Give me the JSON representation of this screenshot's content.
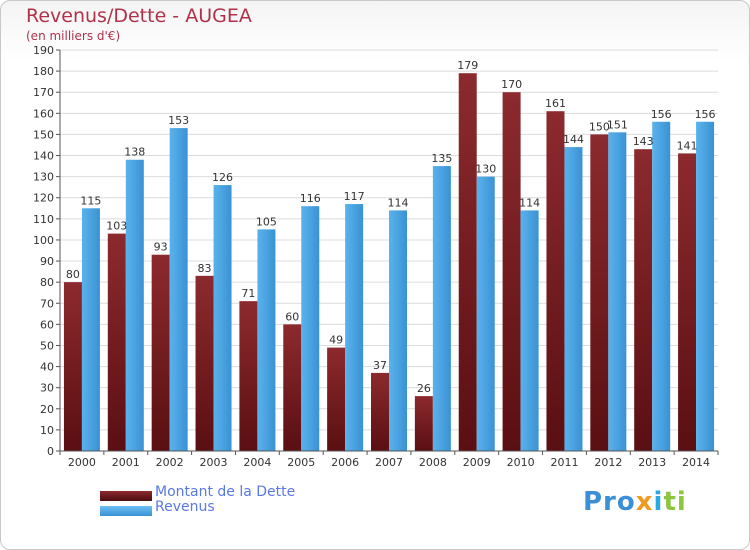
{
  "title": "Revenus/Dette - AUGEA",
  "subtitle": "(en milliers d'€)",
  "logo": {
    "text": "Proxiti"
  },
  "colors": {
    "debt": "#7a1e22",
    "revenue": "#4aa3e2",
    "grid": "#dcdcdc",
    "axis_text": "#333333"
  },
  "legend": {
    "debt_label": "Montant de la Dette",
    "revenue_label": "Revenus"
  },
  "chart_data": {
    "type": "bar",
    "title": "Revenus/Dette - AUGEA",
    "ylabel": "(en milliers d'€)",
    "xlabel": "",
    "ylim": [
      0,
      190
    ],
    "yticks": [
      0,
      10,
      20,
      30,
      40,
      50,
      60,
      70,
      80,
      90,
      100,
      110,
      120,
      130,
      140,
      150,
      160,
      170,
      180,
      190
    ],
    "grid": true,
    "legend_position": "bottom-left",
    "categories": [
      "2000",
      "2001",
      "2002",
      "2003",
      "2004",
      "2005",
      "2006",
      "2007",
      "2008",
      "2009",
      "2010",
      "2011",
      "2012",
      "2013",
      "2014"
    ],
    "series": [
      {
        "name": "Montant de la Dette",
        "values": [
          80,
          103,
          93,
          83,
          71,
          60,
          49,
          37,
          26,
          179,
          170,
          161,
          150,
          143,
          141
        ]
      },
      {
        "name": "Revenus",
        "values": [
          115,
          138,
          153,
          126,
          105,
          116,
          117,
          114,
          135,
          130,
          114,
          144,
          151,
          156,
          156
        ]
      }
    ]
  }
}
